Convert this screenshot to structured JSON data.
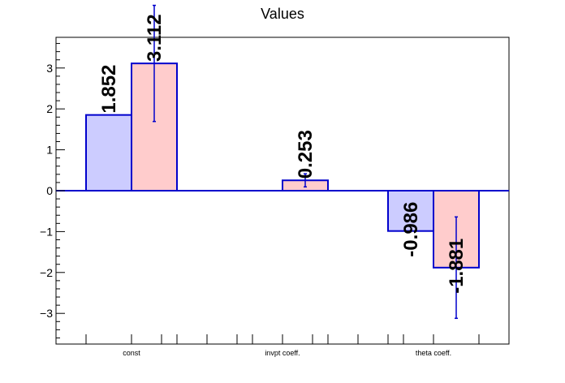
{
  "chart_data": {
    "type": "bar",
    "title": "Values",
    "xlabel": "",
    "ylabel": "",
    "categories": [
      "const",
      "",
      "invpt coeff.",
      "",
      "theta coeff."
    ],
    "ylim": [
      -3.75,
      3.75
    ],
    "yticks": [
      -3,
      -2,
      -1,
      0,
      1,
      2,
      3
    ],
    "ytick_labels": [
      "−3",
      "−2",
      "−1",
      "0",
      "1",
      "2",
      "3"
    ],
    "grid": false,
    "series": [
      {
        "values": [
          1.852,
          0,
          0,
          0,
          -0.986
        ],
        "labels": [
          "1.852",
          "",
          "",
          "",
          "-0.986"
        ],
        "errors": [
          null,
          null,
          null,
          null,
          null
        ],
        "fill": "#ccccff",
        "stroke": "#0000cc"
      },
      {
        "values": [
          3.112,
          0,
          0.253,
          0,
          -1.881
        ],
        "labels": [
          "3.112",
          "",
          "0.253",
          "",
          "-1.881"
        ],
        "errors": [
          1.42,
          null,
          0.16,
          null,
          1.24
        ],
        "fill": "#ffcccc",
        "stroke": "#0000cc"
      }
    ],
    "colors": {
      "axis": "#000000",
      "errorbar": "#0000cc",
      "zeroline": "#0000cc"
    }
  }
}
